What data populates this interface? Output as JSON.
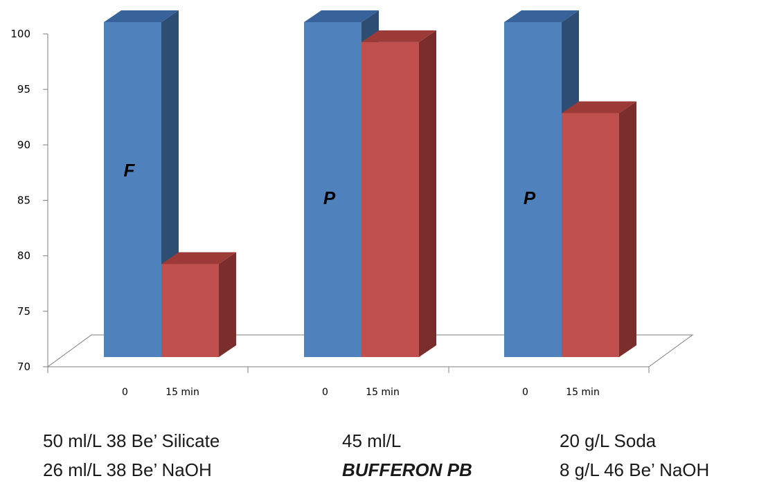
{
  "chart_data": {
    "type": "bar",
    "groups": [
      {
        "label": "F",
        "categories": [
          "0",
          "15 min"
        ],
        "values": [
          100,
          78.2
        ],
        "caption": [
          "50 ml/L 38 Be’ Silicate",
          "26 ml/L 38 Be’ NaOH"
        ]
      },
      {
        "label": "P",
        "categories": [
          "0",
          "15 min"
        ],
        "values": [
          100,
          98.2
        ],
        "caption": [
          "45 ml/L",
          "BUFFERON PB"
        ]
      },
      {
        "label": "P",
        "categories": [
          "0",
          "15 min"
        ],
        "values": [
          100,
          91.8
        ],
        "caption": [
          "20 g/L Soda",
          "8  g/L 46 Be’ NaOH"
        ]
      }
    ],
    "yticks": [
      "70",
      "75",
      "80",
      "85",
      "90",
      "95",
      "100"
    ],
    "ylim": [
      70,
      100
    ],
    "three_d": true,
    "grid": false,
    "colors": {
      "bar_0_front": "#4f81bd",
      "bar_0_side": "#2e4d72",
      "bar_0_top": "#38629a",
      "bar_15_front": "#c0504d",
      "bar_15_side": "#7b2d2b",
      "bar_15_top": "#9b3a37"
    }
  }
}
